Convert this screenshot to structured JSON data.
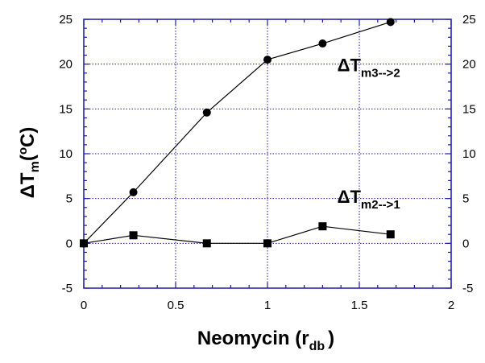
{
  "chart_data": {
    "type": "line",
    "x_label": {
      "main": "Neomycin (r",
      "sub": "db",
      "close": ")"
    },
    "y_label": {
      "delta": "Δ",
      "T": "T",
      "sub": "m",
      "rest": "(",
      "sup": "o",
      "unit": "C)"
    },
    "xlim": [
      0,
      2
    ],
    "ylim": [
      -5,
      25
    ],
    "x_ticks": [
      "0",
      "0.5",
      "1",
      "1.5",
      "2"
    ],
    "x_tick_values": [
      0,
      0.5,
      1,
      1.5,
      2
    ],
    "y_ticks": [
      "-5",
      "0",
      "5",
      "10",
      "15",
      "20",
      "25"
    ],
    "y_tick_values": [
      -5,
      0,
      5,
      10,
      15,
      20,
      25
    ],
    "grid": true,
    "series": [
      {
        "marker": "circle",
        "x": [
          0,
          0.27,
          0.67,
          1.0,
          1.3,
          1.67
        ],
        "y": [
          0,
          5.7,
          14.6,
          20.5,
          22.3,
          24.7
        ]
      },
      {
        "marker": "square",
        "x": [
          0,
          0.27,
          0.67,
          1.0,
          1.3,
          1.67
        ],
        "y": [
          0,
          0.9,
          0,
          0,
          1.9,
          1.0
        ]
      }
    ],
    "annotations": [
      {
        "delta": "Δ",
        "T": "T",
        "sub": "m3-->2",
        "anchor_x": 1.38,
        "anchor_y": 19.2
      },
      {
        "delta": "Δ",
        "T": "T",
        "sub": "m2-->1",
        "anchor_x": 1.38,
        "anchor_y": 4.5
      }
    ],
    "colors": {
      "axis": "#1a1aa6",
      "grid": "#1a1aa6",
      "data": "#000000"
    }
  }
}
